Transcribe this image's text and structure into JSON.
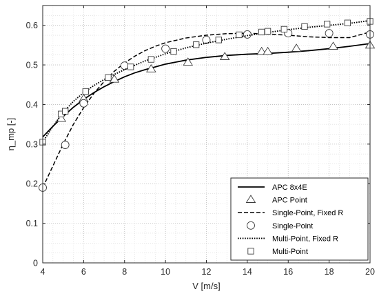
{
  "chart_data": {
    "type": "line",
    "xlabel": "V [m/s]",
    "ylabel": "η_mp [-]",
    "xlim": [
      4,
      20
    ],
    "ylim": [
      0,
      0.65
    ],
    "x_ticks": [
      4,
      6,
      8,
      10,
      12,
      14,
      16,
      18,
      20
    ],
    "y_ticks": [
      0,
      0.1,
      0.2,
      0.3,
      0.4,
      0.5,
      0.6
    ],
    "grid": "major and minor, dotted",
    "legend_position": "bottom-right",
    "series": [
      {
        "name": "APC 8x4E",
        "kind": "line",
        "style": "solid",
        "color": "#000000",
        "points": [
          [
            4,
            0.318
          ],
          [
            4.5,
            0.345
          ],
          [
            5,
            0.37
          ],
          [
            5.5,
            0.393
          ],
          [
            6,
            0.413
          ],
          [
            6.5,
            0.43
          ],
          [
            7,
            0.445
          ],
          [
            7.5,
            0.458
          ],
          [
            8,
            0.47
          ],
          [
            8.5,
            0.48
          ],
          [
            9,
            0.488
          ],
          [
            9.5,
            0.495
          ],
          [
            10,
            0.502
          ],
          [
            11,
            0.512
          ],
          [
            12,
            0.519
          ],
          [
            13,
            0.524
          ],
          [
            14,
            0.527
          ],
          [
            15,
            0.529
          ],
          [
            16,
            0.532
          ],
          [
            17,
            0.536
          ],
          [
            18,
            0.541
          ],
          [
            19,
            0.547
          ],
          [
            20,
            0.554
          ]
        ]
      },
      {
        "name": "APC Point",
        "kind": "markers",
        "marker": "triangle",
        "color": "#000000",
        "points": [
          [
            4.9,
            0.364
          ],
          [
            6,
            0.414
          ],
          [
            7.5,
            0.463
          ],
          [
            9.3,
            0.489
          ],
          [
            11.1,
            0.506
          ],
          [
            12.9,
            0.52
          ],
          [
            14.7,
            0.533
          ],
          [
            15,
            0.533
          ],
          [
            16.4,
            0.541
          ],
          [
            18.2,
            0.546
          ],
          [
            20,
            0.549
          ]
        ]
      },
      {
        "name": "Single-Point, Fixed R",
        "kind": "line",
        "style": "dashed",
        "color": "#000000",
        "points": [
          [
            4,
            0.19
          ],
          [
            4.5,
            0.245
          ],
          [
            5,
            0.3
          ],
          [
            5.5,
            0.35
          ],
          [
            6,
            0.392
          ],
          [
            6.5,
            0.428
          ],
          [
            7,
            0.458
          ],
          [
            7.5,
            0.484
          ],
          [
            8,
            0.505
          ],
          [
            8.5,
            0.522
          ],
          [
            9,
            0.536
          ],
          [
            9.5,
            0.547
          ],
          [
            10,
            0.556
          ],
          [
            11,
            0.568
          ],
          [
            12,
            0.575
          ],
          [
            13,
            0.579
          ],
          [
            14,
            0.58
          ],
          [
            15,
            0.578
          ],
          [
            16,
            0.575
          ],
          [
            17,
            0.571
          ],
          [
            18,
            0.569
          ],
          [
            19,
            0.569
          ],
          [
            20,
            0.583
          ]
        ]
      },
      {
        "name": "Single-Point",
        "kind": "markers",
        "marker": "circle",
        "color": "#000000",
        "points": [
          [
            4,
            0.19
          ],
          [
            5.1,
            0.298
          ],
          [
            6,
            0.403
          ],
          [
            8,
            0.498
          ],
          [
            10,
            0.541
          ],
          [
            12,
            0.563
          ],
          [
            14,
            0.577
          ],
          [
            16,
            0.58
          ],
          [
            18,
            0.58
          ],
          [
            20,
            0.577
          ]
        ]
      },
      {
        "name": "Multi-Point, Fixed R",
        "kind": "line",
        "style": "dotted",
        "color": "#000000",
        "points": [
          [
            4,
            0.305
          ],
          [
            4.5,
            0.345
          ],
          [
            5,
            0.38
          ],
          [
            5.5,
            0.408
          ],
          [
            6,
            0.43
          ],
          [
            6.5,
            0.448
          ],
          [
            7,
            0.463
          ],
          [
            7.5,
            0.476
          ],
          [
            8,
            0.488
          ],
          [
            9,
            0.51
          ],
          [
            10,
            0.528
          ],
          [
            11,
            0.543
          ],
          [
            12,
            0.555
          ],
          [
            13,
            0.565
          ],
          [
            14,
            0.574
          ],
          [
            15,
            0.582
          ],
          [
            16,
            0.589
          ],
          [
            17,
            0.595
          ],
          [
            18,
            0.6
          ],
          [
            19,
            0.605
          ],
          [
            20,
            0.612
          ]
        ]
      },
      {
        "name": "Multi-Point",
        "kind": "markers",
        "marker": "square",
        "color": "#000000",
        "points": [
          [
            4,
            0.305
          ],
          [
            4.9,
            0.376
          ],
          [
            5.1,
            0.383
          ],
          [
            6.1,
            0.433
          ],
          [
            7.2,
            0.468
          ],
          [
            8.3,
            0.495
          ],
          [
            9.3,
            0.514
          ],
          [
            10.4,
            0.534
          ],
          [
            11.5,
            0.551
          ],
          [
            12.6,
            0.563
          ],
          [
            13.6,
            0.576
          ],
          [
            14.7,
            0.583
          ],
          [
            15,
            0.585
          ],
          [
            15.8,
            0.59
          ],
          [
            16.8,
            0.597
          ],
          [
            17.9,
            0.603
          ],
          [
            18.9,
            0.606
          ],
          [
            20,
            0.61
          ]
        ]
      }
    ]
  }
}
